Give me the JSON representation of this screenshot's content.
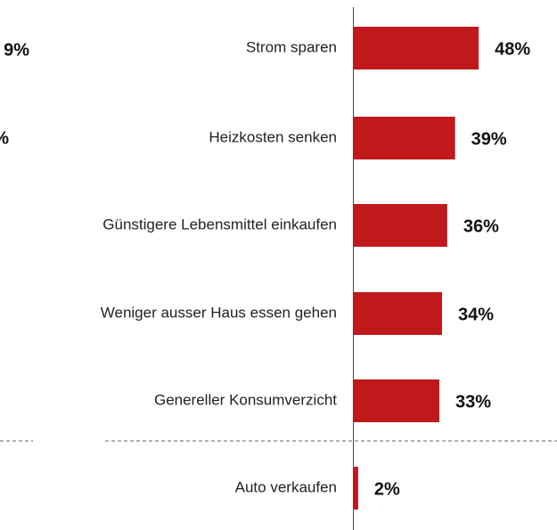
{
  "chart_data": {
    "type": "barh",
    "categories": [
      "Strom sparen",
      "Heizkosten senken",
      "Günstigere Lebensmittel einkaufen",
      "Weniger ausser Haus essen gehen",
      "Genereller Konsumverzicht",
      "Auto verkaufen"
    ],
    "values": [
      48,
      39,
      36,
      34,
      33,
      2
    ],
    "value_labels": [
      "48%",
      "39%",
      "36%",
      "34%",
      "33%",
      "2%"
    ],
    "color": "#c0191b",
    "xlim": [
      0,
      100
    ]
  },
  "fragments": [
    "9%",
    "%"
  ]
}
